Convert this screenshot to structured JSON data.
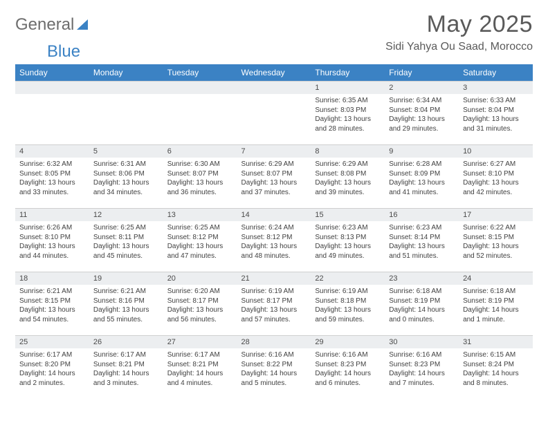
{
  "brand": {
    "part1": "General",
    "part2": "Blue"
  },
  "header": {
    "month_title": "May 2025",
    "location": "Sidi Yahya Ou Saad, Morocco"
  },
  "colors": {
    "header_bg": "#3b82c4",
    "header_text": "#ffffff",
    "daynum_bg": "#eceef0",
    "border": "#cfcfcf",
    "text": "#333333",
    "logo_gray": "#6d6d6d",
    "logo_blue": "#3b82c4"
  },
  "weekdays": [
    "Sunday",
    "Monday",
    "Tuesday",
    "Wednesday",
    "Thursday",
    "Friday",
    "Saturday"
  ],
  "weeks": [
    [
      {
        "blank": true
      },
      {
        "blank": true
      },
      {
        "blank": true
      },
      {
        "blank": true
      },
      {
        "day": "1",
        "sunrise": "Sunrise: 6:35 AM",
        "sunset": "Sunset: 8:03 PM",
        "dl1": "Daylight: 13 hours",
        "dl2": "and 28 minutes."
      },
      {
        "day": "2",
        "sunrise": "Sunrise: 6:34 AM",
        "sunset": "Sunset: 8:04 PM",
        "dl1": "Daylight: 13 hours",
        "dl2": "and 29 minutes."
      },
      {
        "day": "3",
        "sunrise": "Sunrise: 6:33 AM",
        "sunset": "Sunset: 8:04 PM",
        "dl1": "Daylight: 13 hours",
        "dl2": "and 31 minutes."
      }
    ],
    [
      {
        "day": "4",
        "sunrise": "Sunrise: 6:32 AM",
        "sunset": "Sunset: 8:05 PM",
        "dl1": "Daylight: 13 hours",
        "dl2": "and 33 minutes."
      },
      {
        "day": "5",
        "sunrise": "Sunrise: 6:31 AM",
        "sunset": "Sunset: 8:06 PM",
        "dl1": "Daylight: 13 hours",
        "dl2": "and 34 minutes."
      },
      {
        "day": "6",
        "sunrise": "Sunrise: 6:30 AM",
        "sunset": "Sunset: 8:07 PM",
        "dl1": "Daylight: 13 hours",
        "dl2": "and 36 minutes."
      },
      {
        "day": "7",
        "sunrise": "Sunrise: 6:29 AM",
        "sunset": "Sunset: 8:07 PM",
        "dl1": "Daylight: 13 hours",
        "dl2": "and 37 minutes."
      },
      {
        "day": "8",
        "sunrise": "Sunrise: 6:29 AM",
        "sunset": "Sunset: 8:08 PM",
        "dl1": "Daylight: 13 hours",
        "dl2": "and 39 minutes."
      },
      {
        "day": "9",
        "sunrise": "Sunrise: 6:28 AM",
        "sunset": "Sunset: 8:09 PM",
        "dl1": "Daylight: 13 hours",
        "dl2": "and 41 minutes."
      },
      {
        "day": "10",
        "sunrise": "Sunrise: 6:27 AM",
        "sunset": "Sunset: 8:10 PM",
        "dl1": "Daylight: 13 hours",
        "dl2": "and 42 minutes."
      }
    ],
    [
      {
        "day": "11",
        "sunrise": "Sunrise: 6:26 AM",
        "sunset": "Sunset: 8:10 PM",
        "dl1": "Daylight: 13 hours",
        "dl2": "and 44 minutes."
      },
      {
        "day": "12",
        "sunrise": "Sunrise: 6:25 AM",
        "sunset": "Sunset: 8:11 PM",
        "dl1": "Daylight: 13 hours",
        "dl2": "and 45 minutes."
      },
      {
        "day": "13",
        "sunrise": "Sunrise: 6:25 AM",
        "sunset": "Sunset: 8:12 PM",
        "dl1": "Daylight: 13 hours",
        "dl2": "and 47 minutes."
      },
      {
        "day": "14",
        "sunrise": "Sunrise: 6:24 AM",
        "sunset": "Sunset: 8:12 PM",
        "dl1": "Daylight: 13 hours",
        "dl2": "and 48 minutes."
      },
      {
        "day": "15",
        "sunrise": "Sunrise: 6:23 AM",
        "sunset": "Sunset: 8:13 PM",
        "dl1": "Daylight: 13 hours",
        "dl2": "and 49 minutes."
      },
      {
        "day": "16",
        "sunrise": "Sunrise: 6:23 AM",
        "sunset": "Sunset: 8:14 PM",
        "dl1": "Daylight: 13 hours",
        "dl2": "and 51 minutes."
      },
      {
        "day": "17",
        "sunrise": "Sunrise: 6:22 AM",
        "sunset": "Sunset: 8:15 PM",
        "dl1": "Daylight: 13 hours",
        "dl2": "and 52 minutes."
      }
    ],
    [
      {
        "day": "18",
        "sunrise": "Sunrise: 6:21 AM",
        "sunset": "Sunset: 8:15 PM",
        "dl1": "Daylight: 13 hours",
        "dl2": "and 54 minutes."
      },
      {
        "day": "19",
        "sunrise": "Sunrise: 6:21 AM",
        "sunset": "Sunset: 8:16 PM",
        "dl1": "Daylight: 13 hours",
        "dl2": "and 55 minutes."
      },
      {
        "day": "20",
        "sunrise": "Sunrise: 6:20 AM",
        "sunset": "Sunset: 8:17 PM",
        "dl1": "Daylight: 13 hours",
        "dl2": "and 56 minutes."
      },
      {
        "day": "21",
        "sunrise": "Sunrise: 6:19 AM",
        "sunset": "Sunset: 8:17 PM",
        "dl1": "Daylight: 13 hours",
        "dl2": "and 57 minutes."
      },
      {
        "day": "22",
        "sunrise": "Sunrise: 6:19 AM",
        "sunset": "Sunset: 8:18 PM",
        "dl1": "Daylight: 13 hours",
        "dl2": "and 59 minutes."
      },
      {
        "day": "23",
        "sunrise": "Sunrise: 6:18 AM",
        "sunset": "Sunset: 8:19 PM",
        "dl1": "Daylight: 14 hours",
        "dl2": "and 0 minutes."
      },
      {
        "day": "24",
        "sunrise": "Sunrise: 6:18 AM",
        "sunset": "Sunset: 8:19 PM",
        "dl1": "Daylight: 14 hours",
        "dl2": "and 1 minute."
      }
    ],
    [
      {
        "day": "25",
        "sunrise": "Sunrise: 6:17 AM",
        "sunset": "Sunset: 8:20 PM",
        "dl1": "Daylight: 14 hours",
        "dl2": "and 2 minutes."
      },
      {
        "day": "26",
        "sunrise": "Sunrise: 6:17 AM",
        "sunset": "Sunset: 8:21 PM",
        "dl1": "Daylight: 14 hours",
        "dl2": "and 3 minutes."
      },
      {
        "day": "27",
        "sunrise": "Sunrise: 6:17 AM",
        "sunset": "Sunset: 8:21 PM",
        "dl1": "Daylight: 14 hours",
        "dl2": "and 4 minutes."
      },
      {
        "day": "28",
        "sunrise": "Sunrise: 6:16 AM",
        "sunset": "Sunset: 8:22 PM",
        "dl1": "Daylight: 14 hours",
        "dl2": "and 5 minutes."
      },
      {
        "day": "29",
        "sunrise": "Sunrise: 6:16 AM",
        "sunset": "Sunset: 8:23 PM",
        "dl1": "Daylight: 14 hours",
        "dl2": "and 6 minutes."
      },
      {
        "day": "30",
        "sunrise": "Sunrise: 6:16 AM",
        "sunset": "Sunset: 8:23 PM",
        "dl1": "Daylight: 14 hours",
        "dl2": "and 7 minutes."
      },
      {
        "day": "31",
        "sunrise": "Sunrise: 6:15 AM",
        "sunset": "Sunset: 8:24 PM",
        "dl1": "Daylight: 14 hours",
        "dl2": "and 8 minutes."
      }
    ]
  ]
}
